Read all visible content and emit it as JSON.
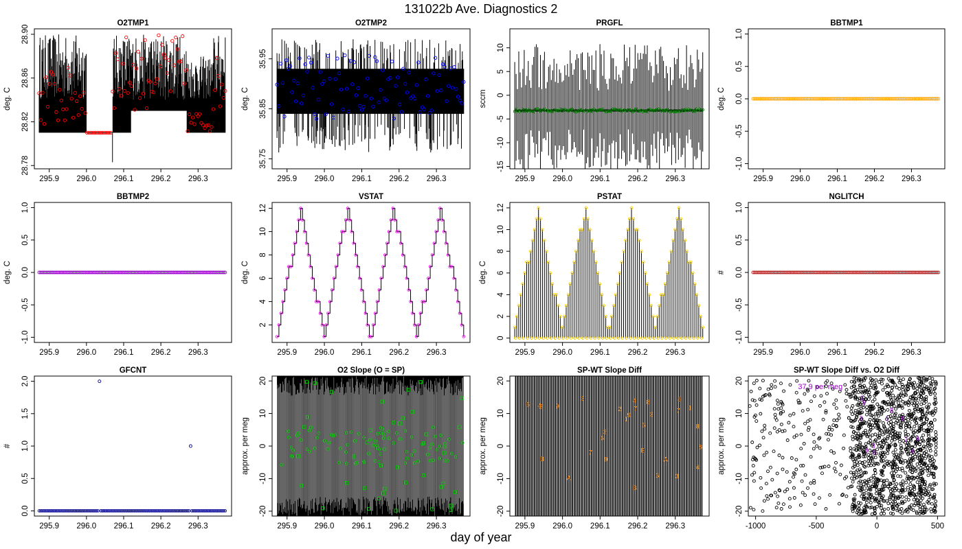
{
  "page": {
    "title": "131022b   Ave. Diagnostics 2",
    "xlabel": "day of year"
  },
  "chart_data": [
    {
      "id": "o2tmp1",
      "type": "line",
      "title": "O2TMP1",
      "ylabel": "deg. C",
      "xlim": [
        295.86,
        296.39
      ],
      "ylim": [
        28.777,
        28.905
      ],
      "xticks": [
        295.9,
        296.0,
        296.1,
        296.2,
        296.3
      ],
      "xtick_labels": [
        "295.9",
        "296.0",
        "296.1",
        "296.2",
        "296.3"
      ],
      "yticks": [
        28.78,
        28.82,
        28.86,
        28.9
      ],
      "ytick_labels": [
        "28.78",
        "28.82",
        "28.86",
        "28.90"
      ],
      "series": [
        {
          "values_band": [
            28.81,
            28.9
          ],
          "color": "#000000"
        },
        {
          "marker": "circle",
          "color": "#ff0000"
        }
      ],
      "flat_segment": {
        "x": [
          296.0,
          296.07
        ],
        "y": 28.81
      },
      "dip": {
        "x": 296.07,
        "y": 28.783
      }
    },
    {
      "id": "o2tmp2",
      "type": "line",
      "title": "O2TMP2",
      "ylabel": "deg. C",
      "xlim": [
        295.86,
        296.39
      ],
      "ylim": [
        35.73,
        36.01
      ],
      "xticks": [
        295.9,
        296.0,
        296.1,
        296.2,
        296.3
      ],
      "xtick_labels": [
        "295.9",
        "296.0",
        "296.1",
        "296.2",
        "296.3"
      ],
      "yticks": [
        35.75,
        35.85,
        35.95
      ],
      "ytick_labels": [
        "35.75",
        "35.85",
        "35.95"
      ],
      "series": [
        {
          "values_band": [
            35.84,
            35.93
          ],
          "color": "#000000"
        },
        {
          "marker": "circle",
          "color": "#0000ff"
        }
      ]
    },
    {
      "id": "prgfl",
      "type": "line",
      "title": "PRGFL",
      "ylabel": "sccm",
      "xlim": [
        295.86,
        296.39
      ],
      "ylim": [
        -15.5,
        14
      ],
      "xticks": [
        295.9,
        296.0,
        296.1,
        296.2,
        296.3
      ],
      "xtick_labels": [
        "295.9",
        "296.0",
        "296.1",
        "296.2",
        "296.3"
      ],
      "yticks": [
        -15,
        -10,
        -5,
        0,
        5,
        10
      ],
      "ytick_labels": [
        "-15",
        "-10",
        "-5",
        "0",
        "5",
        "10"
      ],
      "series": [
        {
          "baseline": -3.2,
          "color": "#000000"
        },
        {
          "marker": "circle",
          "color": "#008000",
          "y": -3.2
        }
      ]
    },
    {
      "id": "bbtmp1",
      "type": "scatter",
      "title": "BBTMP1",
      "ylabel": "deg. C",
      "xlim": [
        295.86,
        296.39
      ],
      "ylim": [
        -1.08,
        1.08
      ],
      "xticks": [
        295.9,
        296.0,
        296.1,
        296.2,
        296.3
      ],
      "xtick_labels": [
        "295.9",
        "296.0",
        "296.1",
        "296.2",
        "296.3"
      ],
      "yticks": [
        -1.0,
        -0.5,
        0.0,
        0.5,
        1.0
      ],
      "ytick_labels": [
        "-1.0",
        "-0.5",
        "0.0",
        "0.5",
        "1.0"
      ],
      "series": [
        {
          "marker": "circle",
          "color": "#ffa500",
          "y": 0
        }
      ]
    },
    {
      "id": "bbtmp2",
      "type": "scatter",
      "title": "BBTMP2",
      "ylabel": "deg. C",
      "xlim": [
        295.86,
        296.39
      ],
      "ylim": [
        -1.08,
        1.08
      ],
      "xticks": [
        295.9,
        296.0,
        296.1,
        296.2,
        296.3
      ],
      "xtick_labels": [
        "295.9",
        "296.0",
        "296.1",
        "296.2",
        "296.3"
      ],
      "yticks": [
        -1.0,
        -0.5,
        0.0,
        0.5,
        1.0
      ],
      "ytick_labels": [
        "-1.0",
        "-0.5",
        "0.0",
        "0.5",
        "1.0"
      ],
      "series": [
        {
          "marker": "circle",
          "color": "#9900cc",
          "y": 0
        }
      ]
    },
    {
      "id": "vstat",
      "type": "line",
      "title": "VSTAT",
      "ylabel": "deg. C",
      "xlim": [
        295.86,
        296.39
      ],
      "ylim": [
        0.5,
        12.5
      ],
      "xticks": [
        295.9,
        296.0,
        296.1,
        296.2,
        296.3
      ],
      "xtick_labels": [
        "295.9",
        "296.0",
        "296.1",
        "296.2",
        "296.3"
      ],
      "yticks": [
        2,
        4,
        6,
        8,
        10,
        12
      ],
      "ytick_labels": [
        "2",
        "4",
        "6",
        "8",
        "10",
        "12"
      ],
      "series": [
        {
          "pattern": "triangle-steps",
          "min": 1,
          "max": 12,
          "cycles": 4,
          "color": "#000000"
        },
        {
          "marker": "circle",
          "color": "#ff00ff"
        }
      ]
    },
    {
      "id": "pstat",
      "type": "line",
      "title": "PSTAT",
      "ylabel": "deg. C",
      "xlim": [
        295.86,
        296.39
      ],
      "ylim": [
        -0.4,
        12.5
      ],
      "xticks": [
        295.9,
        296.0,
        296.1,
        296.2,
        296.3
      ],
      "xtick_labels": [
        "295.9",
        "296.0",
        "296.1",
        "296.2",
        "296.3"
      ],
      "yticks": [
        0,
        2,
        4,
        6,
        8,
        10,
        12
      ],
      "ytick_labels": [
        "0",
        "2",
        "4",
        "6",
        "8",
        "10",
        "12"
      ],
      "series": [
        {
          "pattern": "triangle-spikes",
          "min": 1,
          "max": 12,
          "cycles": 4,
          "color": "#000000"
        },
        {
          "marker": "circle",
          "color": "#ffd700"
        }
      ]
    },
    {
      "id": "nglitch",
      "type": "scatter",
      "title": "NGLITCH",
      "ylabel": "#",
      "xlim": [
        295.86,
        296.39
      ],
      "ylim": [
        -1.08,
        1.08
      ],
      "xticks": [
        295.9,
        296.0,
        296.1,
        296.2,
        296.3
      ],
      "xtick_labels": [
        "295.9",
        "296.0",
        "296.1",
        "296.2",
        "296.3"
      ],
      "yticks": [
        -1.0,
        -0.5,
        0.0,
        0.5,
        1.0
      ],
      "ytick_labels": [
        "-1.0",
        "-0.5",
        "0.0",
        "0.5",
        "1.0"
      ],
      "series": [
        {
          "marker": "circle",
          "color": "#b22222",
          "y": 0
        }
      ]
    },
    {
      "id": "gfcnt",
      "type": "scatter",
      "title": "GFCNT",
      "ylabel": "#",
      "xlim": [
        295.86,
        296.39
      ],
      "ylim": [
        -0.08,
        2.08
      ],
      "xticks": [
        295.9,
        296.0,
        296.1,
        296.2,
        296.3
      ],
      "xtick_labels": [
        "295.9",
        "296.0",
        "296.1",
        "296.2",
        "296.3"
      ],
      "yticks": [
        0.0,
        0.5,
        1.0,
        1.5,
        2.0
      ],
      "ytick_labels": [
        "0.0",
        "0.5",
        "1.0",
        "1.5",
        "2.0"
      ],
      "series": [
        {
          "marker": "circle",
          "color": "#00008b",
          "y": 0,
          "outliers": [
            {
              "x": 296.035,
              "y": 2
            },
            {
              "x": 296.28,
              "y": 1
            }
          ]
        }
      ]
    },
    {
      "id": "o2slope",
      "type": "scatter",
      "title": "O2 Slope (O = SP)",
      "ylabel": "approx. per meg",
      "xlim": [
        295.86,
        296.39
      ],
      "ylim": [
        -21.5,
        21.5
      ],
      "xticks": [
        295.9,
        296.0,
        296.1,
        296.2,
        296.3
      ],
      "xtick_labels": [
        "295.9",
        "296.0",
        "296.1",
        "296.2",
        "296.3"
      ],
      "yticks": [
        -20,
        -10,
        0,
        10,
        20
      ],
      "ytick_labels": [
        "-20",
        "-10",
        "0",
        "10",
        "20"
      ],
      "series": [
        {
          "fill": "#000000"
        },
        {
          "marker": "circle",
          "color": "#00cc00"
        },
        {
          "marker": "square",
          "color": "#00cc00"
        }
      ]
    },
    {
      "id": "spwt",
      "type": "scatter",
      "title": "SP-WT Slope Diff",
      "ylabel": "approx. per meg",
      "xlim": [
        295.86,
        296.39
      ],
      "ylim": [
        -21.5,
        21.5
      ],
      "xticks": [
        295.9,
        296.0,
        296.1,
        296.2,
        296.3
      ],
      "xtick_labels": [
        "295.9",
        "296.0",
        "296.1",
        "296.2",
        "296.3"
      ],
      "yticks": [
        -20,
        -10,
        0,
        10,
        20
      ],
      "ytick_labels": [
        "-20",
        "-10",
        "0",
        "10",
        "20"
      ],
      "series": [
        {
          "fill": "#000000"
        },
        {
          "marker": "text",
          "color": "#ff8c00"
        }
      ]
    },
    {
      "id": "spwt_vs_o2",
      "type": "scatter",
      "title": "SP-WT Slope Diff vs. O2 Diff",
      "ylabel": "approx. per meg",
      "xlim": [
        -1060,
        560
      ],
      "ylim": [
        -21.5,
        21.5
      ],
      "xticks": [
        -1000,
        -500,
        0,
        500
      ],
      "xtick_labels": [
        "-1000",
        "-500",
        "0",
        "500"
      ],
      "yticks": [
        -20,
        -10,
        0,
        10,
        20
      ],
      "ytick_labels": [
        "-20",
        "-10",
        "0",
        "10",
        "20"
      ],
      "annotation": "37.9 per meg",
      "series": [
        {
          "marker": "circle",
          "color": "#000000"
        },
        {
          "marker": "text",
          "color": "#9900cc"
        }
      ]
    }
  ]
}
